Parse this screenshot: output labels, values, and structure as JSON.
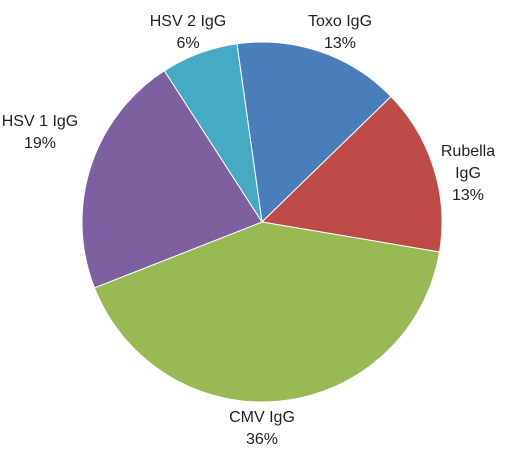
{
  "chart_data": {
    "type": "pie",
    "categories": [
      "Toxo IgG",
      "Rubella IgG",
      "CMV IgG",
      "HSV 1 IgG",
      "HSV 2 IgG"
    ],
    "values": [
      13,
      13,
      36,
      19,
      6
    ],
    "value_labels": [
      "13%",
      "13%",
      "36%",
      "19%",
      "6%"
    ],
    "colors": [
      "#4a7ebb",
      "#be4b48",
      "#98b954",
      "#7d60a0",
      "#46aac5"
    ]
  }
}
